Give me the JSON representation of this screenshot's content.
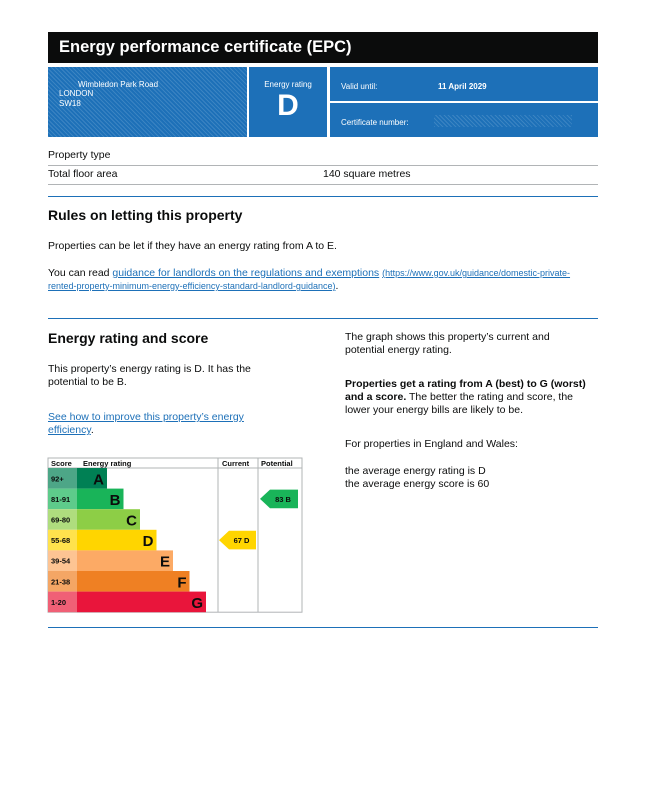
{
  "header": {
    "title": "Energy performance certificate (EPC)"
  },
  "address": [
    "Wimbledon Park Road",
    "LONDON",
    "SW18"
  ],
  "energy_rating": {
    "label": "Energy rating",
    "value": "D"
  },
  "valid_until": {
    "label": "Valid until:",
    "value": "11 April 2029"
  },
  "certificate_number": {
    "label": "Certificate number:"
  },
  "property": [
    {
      "label": "Property type"
    },
    {
      "label": "Total floor area",
      "value": "140 square metres"
    }
  ],
  "rules": {
    "title": "Rules on letting this property",
    "p1": "Properties can be let if they have an energy rating from A to E.",
    "p2_start": "You can read ",
    "p2_link": "guidance for landlords on the regulations and exemptions",
    "p2_url": "(https://www.gov.uk/guidance/domestic-private-rented-property-minimum-energy-efficiency-standard-landlord-guidance)",
    "p2_end": "."
  },
  "rating": {
    "title": "Energy rating and score",
    "summary": "This property’s energy rating is D. It has the potential to be B.",
    "link": "See how to improve this property’s energy efficiency",
    "link_end": ".",
    "graph_note": "The graph shows this property’s current and potential energy rating.",
    "scale_bold": "Properties get a rating from A (best) to G (worst) and a score.",
    "scale_text": " The better the rating and score, the lower your energy bills are likely to be.",
    "region": "For properties in England and Wales:",
    "avg_rating": "the average energy rating is D",
    "avg_score": "the average energy score is 60"
  },
  "graph": {
    "headers": [
      "Score",
      "Energy rating",
      "Current",
      "Potential"
    ],
    "bands": [
      {
        "score": "92+",
        "letter": "A",
        "color": "#008054",
        "score_color": "#4da687"
      },
      {
        "score": "81-91",
        "letter": "B",
        "color": "#19b459",
        "score_color": "#5ecb8b"
      },
      {
        "score": "69-80",
        "letter": "C",
        "color": "#8dce46",
        "score_color": "#afdd7e"
      },
      {
        "score": "55-68",
        "letter": "D",
        "color": "#ffd500",
        "score_color": "#ffe24d"
      },
      {
        "score": "39-54",
        "letter": "E",
        "color": "#fcaa65",
        "score_color": "#fdc493"
      },
      {
        "score": "21-38",
        "letter": "F",
        "color": "#ef8023",
        "score_color": "#f4a665"
      },
      {
        "score": "1-20",
        "letter": "G",
        "color": "#e9153b",
        "score_color": "#f06076"
      }
    ],
    "current": {
      "score": "67",
      "letter": "D",
      "band": 3
    },
    "potential": {
      "score": "83",
      "letter": "B",
      "band": 1
    }
  }
}
